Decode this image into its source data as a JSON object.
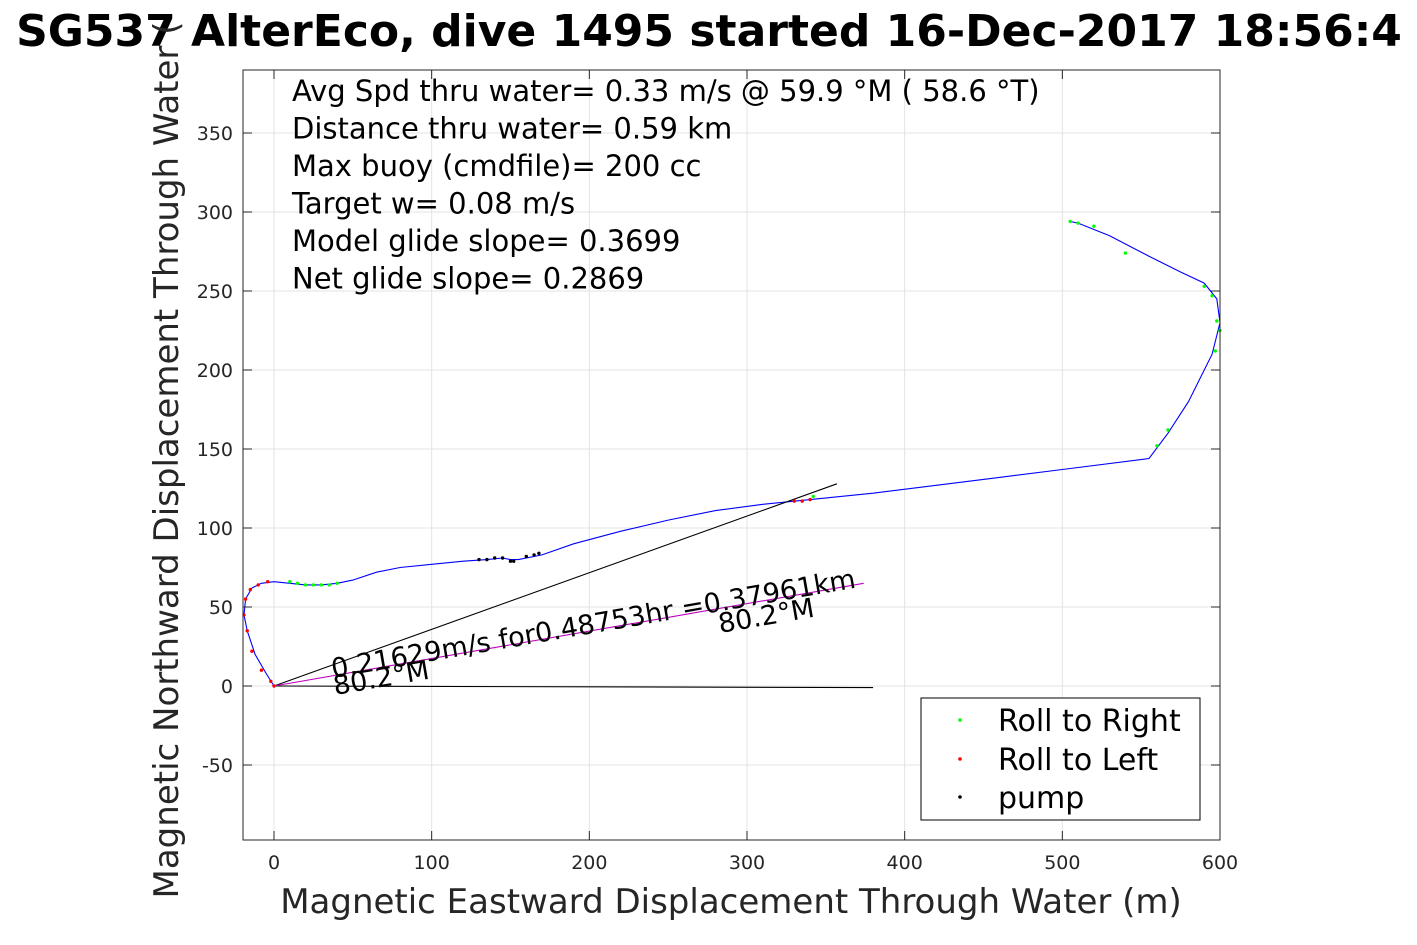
{
  "chart_data": {
    "type": "line",
    "title": "SG537 AlterEco, dive 1495 started 16-Dec-2017 18:56:4",
    "xlabel": "Magnetic Eastward Displacement Through Water (m)",
    "ylabel": "Magnetic Northward Displacement Through Water (",
    "xlim": [
      -19,
      600
    ],
    "ylim": [
      -97,
      390
    ],
    "grid": true,
    "x_ticks": [
      0,
      100,
      200,
      300,
      400,
      500,
      600
    ],
    "y_ticks": [
      -50,
      0,
      50,
      100,
      150,
      200,
      250,
      300,
      350
    ],
    "info_lines": [
      "Avg Spd thru water=  0.33 m/s @  59.9 °M ( 58.6 °T)",
      "Distance thru water=  0.59 km",
      "Max buoy (cmdfile)= 200 cc",
      "Target w= 0.08 m/s",
      "Model glide slope= 0.3699",
      "Net glide slope= 0.2869"
    ],
    "annotations": {
      "current_speed": "0.21629m/s for0.48753hr =0.37961km",
      "current_heading_1": "80.2°M",
      "current_heading_2": "80.2°M"
    },
    "legend": {
      "placement": "bottom-right",
      "entries": [
        "Roll to Right",
        "Roll to Left",
        "pump"
      ]
    },
    "series": [
      {
        "type": "line",
        "color": "#0000ff",
        "x": [
          0,
          -5,
          -12,
          -17,
          -19,
          -18,
          -14,
          -8,
          0,
          10,
          20,
          30,
          40,
          50,
          65,
          80,
          100,
          120,
          135,
          145,
          150,
          155,
          170,
          190,
          220,
          250,
          280,
          310,
          340,
          380,
          420,
          460,
          500,
          555,
          567,
          580,
          595,
          600,
          598,
          590,
          575,
          555,
          530,
          510,
          505
        ],
        "y": [
          0,
          8,
          20,
          35,
          45,
          55,
          62,
          65,
          66,
          65,
          64,
          64,
          65,
          67,
          72,
          75,
          77,
          79,
          80,
          81,
          80,
          80,
          83,
          90,
          98,
          105,
          111,
          115,
          118,
          122,
          127,
          132,
          137,
          144,
          160,
          180,
          210,
          230,
          245,
          255,
          262,
          272,
          285,
          293,
          294
        ]
      },
      {
        "type": "line",
        "color": "#000000",
        "x": [
          0,
          357
        ],
        "y": [
          0,
          128
        ]
      },
      {
        "type": "line",
        "color": "#000000",
        "x": [
          0,
          380
        ],
        "y": [
          0,
          -1
        ]
      },
      {
        "type": "line",
        "color": "#c000c0",
        "x": [
          0,
          374
        ],
        "y": [
          0,
          65
        ]
      },
      {
        "name": "Roll to Right",
        "type": "scatter",
        "color": "#00ff00",
        "x": [
          10,
          15,
          20,
          25,
          30,
          35,
          40,
          342,
          505,
          510,
          520,
          540,
          560,
          567,
          590,
          595,
          598,
          600,
          597
        ],
        "y": [
          66,
          65,
          64,
          64,
          64,
          64,
          65,
          120,
          294,
          293,
          291,
          274,
          152,
          162,
          253,
          247,
          231,
          225,
          212
        ]
      },
      {
        "name": "Roll to Left",
        "type": "scatter",
        "color": "#ff0000",
        "x": [
          -2,
          -8,
          -14,
          -17,
          -19,
          -18,
          -15,
          -10,
          -4,
          0,
          330,
          335,
          340
        ],
        "y": [
          3,
          10,
          22,
          35,
          45,
          55,
          61,
          64,
          66,
          0,
          117,
          117,
          118
        ]
      },
      {
        "name": "pump",
        "type": "scatter",
        "color": "#000000",
        "x": [
          130,
          135,
          140,
          145,
          150,
          152,
          160,
          165,
          168
        ],
        "y": [
          80,
          80,
          81,
          81,
          79,
          79,
          82,
          83,
          84
        ]
      }
    ]
  }
}
